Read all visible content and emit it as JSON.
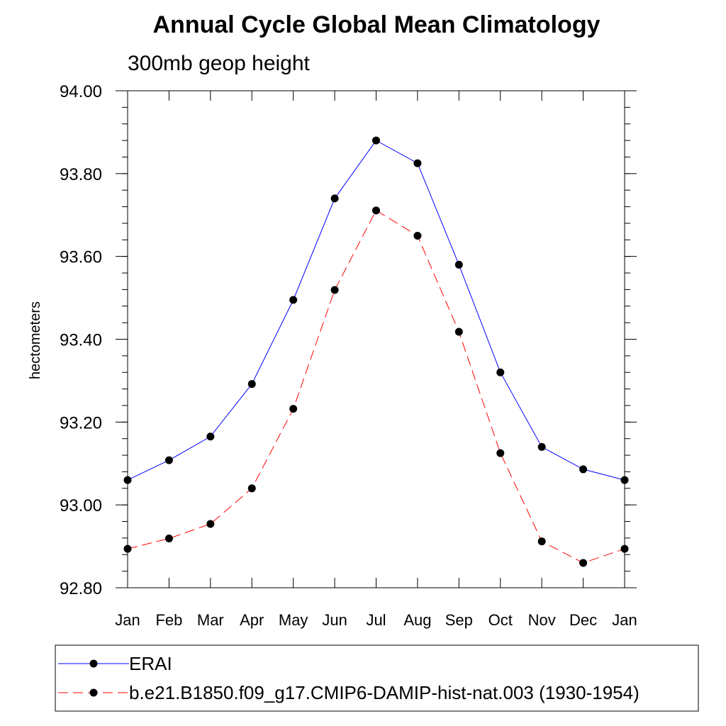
{
  "chart_data": {
    "type": "line",
    "title": "Annual Cycle Global Mean Climatology",
    "subtitle": "300mb geop height",
    "xlabel": "",
    "ylabel": "hectometers",
    "categories": [
      "Jan",
      "Feb",
      "Mar",
      "Apr",
      "May",
      "Jun",
      "Jul",
      "Aug",
      "Sep",
      "Oct",
      "Nov",
      "Dec",
      "Jan"
    ],
    "ylim": [
      92.8,
      94.0
    ],
    "yticks": [
      "94.00",
      "93.80",
      "93.60",
      "93.40",
      "93.20",
      "93.00",
      "92.80"
    ],
    "ytick_values": [
      94.0,
      93.8,
      93.6,
      93.4,
      93.2,
      93.0,
      92.8
    ],
    "grid": false,
    "legend_position": "bottom",
    "series": [
      {
        "name": "ERAI",
        "color": "#0000ff",
        "line_style": "solid",
        "marker": "filled-circle",
        "values": [
          93.06,
          93.108,
          93.165,
          93.292,
          93.495,
          93.74,
          93.88,
          93.825,
          93.58,
          93.32,
          93.14,
          93.086,
          93.06
        ]
      },
      {
        "name": "b.e21.B1850.f09_g17.CMIP6-DAMIP-hist-nat.003 (1930-1954)",
        "color": "#ff0000",
        "line_style": "dashed",
        "marker": "filled-circle",
        "values": [
          92.894,
          92.919,
          92.954,
          93.04,
          93.232,
          93.519,
          93.711,
          93.65,
          93.418,
          93.125,
          92.912,
          92.86,
          92.894
        ]
      }
    ]
  }
}
